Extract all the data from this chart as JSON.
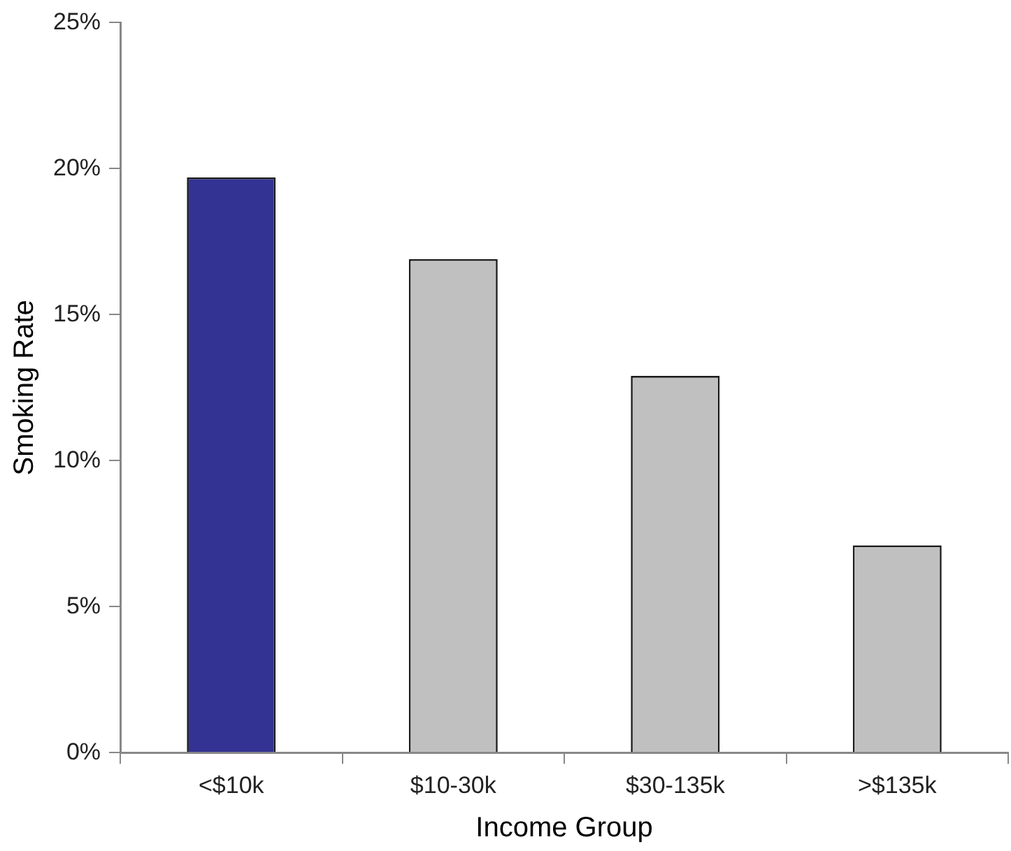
{
  "chart_data": {
    "type": "bar",
    "xlabel": "Income Group",
    "ylabel": "Smoking Rate",
    "categories": [
      "<$10k",
      "$10-30k",
      "$30-135k",
      ">$135k"
    ],
    "values": [
      19.7,
      16.9,
      12.9,
      7.1
    ],
    "colors": [
      "#333393",
      "#c0c0c0",
      "#c0c0c0",
      "#c0c0c0"
    ],
    "ylim": [
      0,
      25
    ],
    "yticks": [
      {
        "value": 0,
        "label": "0%"
      },
      {
        "value": 5,
        "label": "5%"
      },
      {
        "value": 10,
        "label": "10%"
      },
      {
        "value": 15,
        "label": "15%"
      },
      {
        "value": 20,
        "label": "20%"
      },
      {
        "value": 25,
        "label": "25%"
      }
    ],
    "grid": false,
    "legend": false
  }
}
